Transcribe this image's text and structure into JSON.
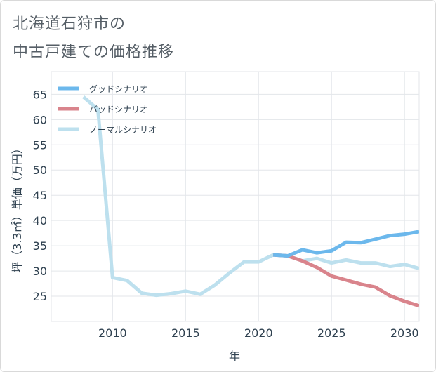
{
  "title_lines": [
    "北海道石狩市の",
    "中古戸建ての価格推移"
  ],
  "chart_data": {
    "type": "line",
    "xlabel": "年",
    "ylabel": "坪（3.3㎡）単価（万円）",
    "xlim": [
      2005.8,
      2031
    ],
    "ylim": [
      20,
      69.5
    ],
    "x_ticks": [
      2010,
      2015,
      2020,
      2025,
      2030
    ],
    "y_ticks": [
      25,
      30,
      35,
      40,
      45,
      50,
      55,
      60,
      65
    ],
    "grid": true,
    "legend_position": "top-left",
    "series": [
      {
        "name": "グッドシナリオ",
        "color": "#6cb8ec",
        "x": [
          2021,
          2022,
          2023,
          2024,
          2025,
          2026,
          2027,
          2028,
          2029,
          2030,
          2031
        ],
        "y": [
          33.2,
          33.0,
          34.2,
          33.6,
          34.0,
          35.7,
          35.6,
          36.3,
          37.0,
          37.3,
          37.8
        ]
      },
      {
        "name": "バッドシナリオ",
        "color": "#d9848c",
        "x": [
          2021,
          2022,
          2023,
          2024,
          2025,
          2026,
          2027,
          2028,
          2029,
          2030,
          2031
        ],
        "y": [
          33.2,
          33.0,
          32.0,
          30.7,
          29.0,
          28.2,
          27.4,
          26.8,
          25.1,
          24.0,
          23.1
        ]
      },
      {
        "name": "ノーマルシナリオ",
        "color": "#bde0ee",
        "x": [
          2008,
          2009,
          2010,
          2011,
          2012,
          2013,
          2014,
          2015,
          2016,
          2017,
          2018,
          2019,
          2020,
          2021,
          2022,
          2023,
          2024,
          2025,
          2026,
          2027,
          2028,
          2029,
          2030,
          2031
        ],
        "y": [
          64.5,
          62.0,
          28.7,
          28.1,
          25.6,
          25.2,
          25.5,
          26.0,
          25.4,
          27.2,
          29.6,
          31.8,
          31.8,
          33.2,
          33.0,
          32.0,
          32.5,
          31.6,
          32.2,
          31.6,
          31.6,
          30.9,
          31.3,
          30.5
        ]
      }
    ]
  }
}
